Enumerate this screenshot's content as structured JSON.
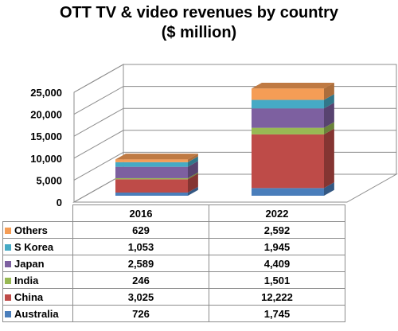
{
  "chart_data": {
    "type": "bar",
    "stacked": true,
    "three_d": true,
    "title": "OTT TV & video revenues by country",
    "subtitle": "($ million)",
    "categories": [
      "2016",
      "2022"
    ],
    "ylim": [
      0,
      25000
    ],
    "yticks": [
      "0",
      "5,000",
      "10,000",
      "15,000",
      "20,000",
      "25,000"
    ],
    "grid": true,
    "legend": "data-table",
    "series": [
      {
        "name": "Australia",
        "color": "#4a7ebb",
        "values": [
          726,
          1745
        ],
        "labels": [
          "726",
          "1,745"
        ]
      },
      {
        "name": "China",
        "color": "#be4b48",
        "values": [
          3025,
          12222
        ],
        "labels": [
          "3,025",
          "12,222"
        ]
      },
      {
        "name": "India",
        "color": "#98b954",
        "values": [
          246,
          1501
        ],
        "labels": [
          "246",
          "1,501"
        ]
      },
      {
        "name": "Japan",
        "color": "#7d60a0",
        "values": [
          2589,
          4409
        ],
        "labels": [
          "2,589",
          "4,409"
        ]
      },
      {
        "name": "S Korea",
        "color": "#46aac5",
        "values": [
          1053,
          1945
        ],
        "labels": [
          "1,053",
          "1,945"
        ]
      },
      {
        "name": "Others",
        "color": "#f59d56",
        "values": [
          629,
          2592
        ],
        "labels": [
          "629",
          "2,592"
        ]
      }
    ]
  }
}
